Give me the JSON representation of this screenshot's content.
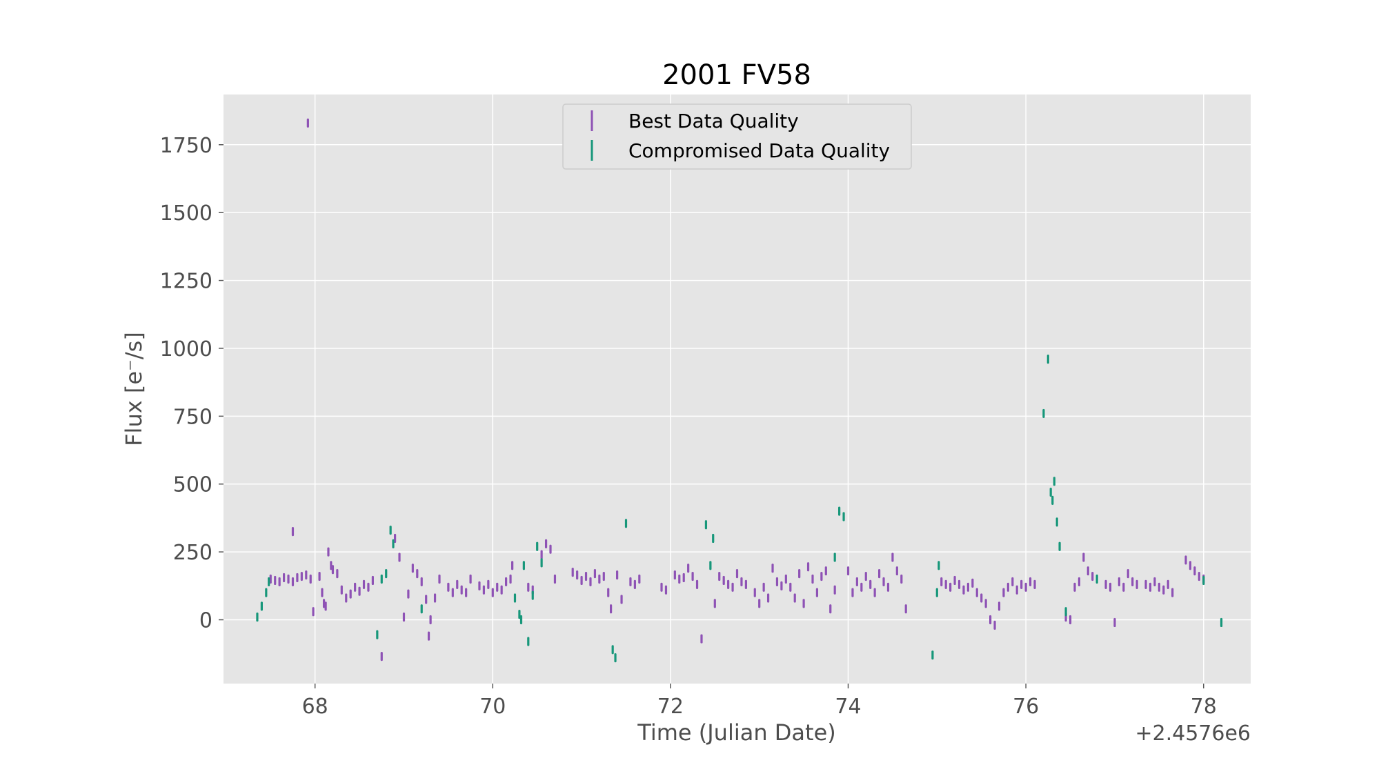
{
  "chart_data": {
    "type": "scatter",
    "title": "2001 FV58",
    "xlabel": "Time (Julian Date)",
    "ylabel": "Flux [e$^-$/s]",
    "ylabel_display": "Flux [e⁻/s]",
    "offset_text": "+2.4576e6",
    "x_offset": 2457600,
    "xlim": [
      66.97,
      78.53
    ],
    "ylim": [
      -235,
      1935
    ],
    "xticks": [
      68,
      70,
      72,
      74,
      76,
      78
    ],
    "yticks": [
      0,
      250,
      500,
      750,
      1000,
      1250,
      1500,
      1750
    ],
    "grid": true,
    "legend_position": "upper center",
    "colors": {
      "best": "#8e52b5",
      "compromised": "#17977a",
      "background": "#e5e5e5",
      "grid": "#ffffff"
    },
    "series": [
      {
        "name": "Best Data Quality",
        "color": "#8e52b5",
        "points": [
          [
            67.92,
            1830
          ],
          [
            67.75,
            325
          ],
          [
            67.5,
            150
          ],
          [
            67.55,
            145
          ],
          [
            67.6,
            140
          ],
          [
            67.65,
            155
          ],
          [
            67.7,
            150
          ],
          [
            67.75,
            140
          ],
          [
            67.8,
            155
          ],
          [
            67.85,
            160
          ],
          [
            67.9,
            165
          ],
          [
            67.95,
            150
          ],
          [
            67.98,
            30
          ],
          [
            68.05,
            160
          ],
          [
            68.08,
            100
          ],
          [
            68.1,
            60
          ],
          [
            68.12,
            50
          ],
          [
            68.15,
            250
          ],
          [
            68.18,
            200
          ],
          [
            68.2,
            185
          ],
          [
            68.25,
            170
          ],
          [
            68.3,
            110
          ],
          [
            68.35,
            80
          ],
          [
            68.4,
            95
          ],
          [
            68.45,
            120
          ],
          [
            68.5,
            105
          ],
          [
            68.55,
            130
          ],
          [
            68.6,
            120
          ],
          [
            68.65,
            145
          ],
          [
            68.75,
            -135
          ],
          [
            68.9,
            300
          ],
          [
            68.95,
            230
          ],
          [
            69.0,
            10
          ],
          [
            69.05,
            95
          ],
          [
            69.1,
            190
          ],
          [
            69.15,
            170
          ],
          [
            69.2,
            140
          ],
          [
            69.25,
            75
          ],
          [
            69.28,
            -60
          ],
          [
            69.3,
            0
          ],
          [
            69.35,
            80
          ],
          [
            69.4,
            150
          ],
          [
            69.5,
            120
          ],
          [
            69.55,
            100
          ],
          [
            69.6,
            130
          ],
          [
            69.65,
            110
          ],
          [
            69.7,
            100
          ],
          [
            69.75,
            150
          ],
          [
            69.85,
            125
          ],
          [
            69.9,
            110
          ],
          [
            69.95,
            130
          ],
          [
            70.0,
            100
          ],
          [
            70.05,
            120
          ],
          [
            70.1,
            110
          ],
          [
            70.15,
            140
          ],
          [
            70.2,
            150
          ],
          [
            70.22,
            200
          ],
          [
            70.4,
            120
          ],
          [
            70.45,
            110
          ],
          [
            70.55,
            240
          ],
          [
            70.6,
            280
          ],
          [
            70.65,
            260
          ],
          [
            70.7,
            150
          ],
          [
            70.9,
            175
          ],
          [
            70.95,
            165
          ],
          [
            71.0,
            145
          ],
          [
            71.05,
            160
          ],
          [
            71.1,
            140
          ],
          [
            71.15,
            170
          ],
          [
            71.2,
            150
          ],
          [
            71.25,
            160
          ],
          [
            71.3,
            100
          ],
          [
            71.33,
            40
          ],
          [
            71.4,
            165
          ],
          [
            71.45,
            75
          ],
          [
            71.55,
            140
          ],
          [
            71.6,
            130
          ],
          [
            71.65,
            150
          ],
          [
            71.9,
            120
          ],
          [
            71.95,
            110
          ],
          [
            72.05,
            165
          ],
          [
            72.1,
            150
          ],
          [
            72.15,
            155
          ],
          [
            72.2,
            190
          ],
          [
            72.25,
            160
          ],
          [
            72.3,
            130
          ],
          [
            72.35,
            -70
          ],
          [
            72.5,
            60
          ],
          [
            72.55,
            160
          ],
          [
            72.6,
            145
          ],
          [
            72.65,
            130
          ],
          [
            72.7,
            120
          ],
          [
            72.75,
            170
          ],
          [
            72.8,
            140
          ],
          [
            72.85,
            130
          ],
          [
            72.95,
            100
          ],
          [
            73.0,
            60
          ],
          [
            73.05,
            120
          ],
          [
            73.1,
            80
          ],
          [
            73.15,
            190
          ],
          [
            73.2,
            140
          ],
          [
            73.25,
            125
          ],
          [
            73.3,
            150
          ],
          [
            73.35,
            120
          ],
          [
            73.4,
            80
          ],
          [
            73.45,
            170
          ],
          [
            73.5,
            60
          ],
          [
            73.55,
            195
          ],
          [
            73.6,
            150
          ],
          [
            73.65,
            100
          ],
          [
            73.7,
            160
          ],
          [
            73.75,
            180
          ],
          [
            73.8,
            40
          ],
          [
            73.85,
            110
          ],
          [
            74.0,
            180
          ],
          [
            74.05,
            100
          ],
          [
            74.1,
            140
          ],
          [
            74.15,
            120
          ],
          [
            74.2,
            160
          ],
          [
            74.25,
            130
          ],
          [
            74.3,
            100
          ],
          [
            74.35,
            170
          ],
          [
            74.4,
            140
          ],
          [
            74.45,
            120
          ],
          [
            74.5,
            230
          ],
          [
            74.55,
            180
          ],
          [
            74.6,
            150
          ],
          [
            74.65,
            40
          ],
          [
            75.05,
            140
          ],
          [
            75.1,
            130
          ],
          [
            75.15,
            120
          ],
          [
            75.2,
            145
          ],
          [
            75.25,
            130
          ],
          [
            75.3,
            110
          ],
          [
            75.35,
            120
          ],
          [
            75.4,
            135
          ],
          [
            75.45,
            100
          ],
          [
            75.5,
            80
          ],
          [
            75.55,
            60
          ],
          [
            75.6,
            0
          ],
          [
            75.65,
            -20
          ],
          [
            75.7,
            50
          ],
          [
            75.75,
            100
          ],
          [
            75.8,
            120
          ],
          [
            75.85,
            140
          ],
          [
            75.9,
            110
          ],
          [
            75.95,
            130
          ],
          [
            76.0,
            120
          ],
          [
            76.05,
            140
          ],
          [
            76.1,
            130
          ],
          [
            76.45,
            10
          ],
          [
            76.5,
            0
          ],
          [
            76.55,
            120
          ],
          [
            76.6,
            140
          ],
          [
            76.65,
            230
          ],
          [
            76.7,
            180
          ],
          [
            76.75,
            160
          ],
          [
            76.9,
            130
          ],
          [
            76.95,
            120
          ],
          [
            77.0,
            -10
          ],
          [
            77.05,
            140
          ],
          [
            77.1,
            120
          ],
          [
            77.15,
            170
          ],
          [
            77.2,
            140
          ],
          [
            77.25,
            130
          ],
          [
            77.35,
            130
          ],
          [
            77.4,
            120
          ],
          [
            77.45,
            140
          ],
          [
            77.5,
            120
          ],
          [
            77.55,
            110
          ],
          [
            77.6,
            130
          ],
          [
            77.65,
            100
          ],
          [
            77.8,
            220
          ],
          [
            77.85,
            200
          ],
          [
            77.9,
            180
          ],
          [
            77.95,
            160
          ],
          [
            78.0,
            150
          ]
        ]
      },
      {
        "name": "Compromised Data Quality",
        "color": "#17977a",
        "points": [
          [
            67.35,
            10
          ],
          [
            67.4,
            50
          ],
          [
            67.45,
            100
          ],
          [
            67.48,
            140
          ],
          [
            68.7,
            -55
          ],
          [
            68.75,
            150
          ],
          [
            68.8,
            170
          ],
          [
            68.85,
            330
          ],
          [
            68.88,
            280
          ],
          [
            69.2,
            40
          ],
          [
            70.25,
            80
          ],
          [
            70.3,
            20
          ],
          [
            70.32,
            0
          ],
          [
            70.35,
            200
          ],
          [
            70.4,
            -80
          ],
          [
            70.45,
            90
          ],
          [
            70.5,
            270
          ],
          [
            70.55,
            210
          ],
          [
            71.35,
            -110
          ],
          [
            71.38,
            -140
          ],
          [
            71.5,
            355
          ],
          [
            72.4,
            350
          ],
          [
            72.45,
            200
          ],
          [
            72.48,
            300
          ],
          [
            73.9,
            400
          ],
          [
            73.95,
            380
          ],
          [
            73.85,
            230
          ],
          [
            74.95,
            -130
          ],
          [
            75.0,
            100
          ],
          [
            75.02,
            200
          ],
          [
            76.2,
            760
          ],
          [
            76.25,
            960
          ],
          [
            76.28,
            470
          ],
          [
            76.3,
            440
          ],
          [
            76.32,
            510
          ],
          [
            76.35,
            360
          ],
          [
            76.38,
            270
          ],
          [
            76.45,
            30
          ],
          [
            76.8,
            150
          ],
          [
            78.0,
            145
          ],
          [
            78.2,
            -10
          ]
        ]
      }
    ]
  }
}
